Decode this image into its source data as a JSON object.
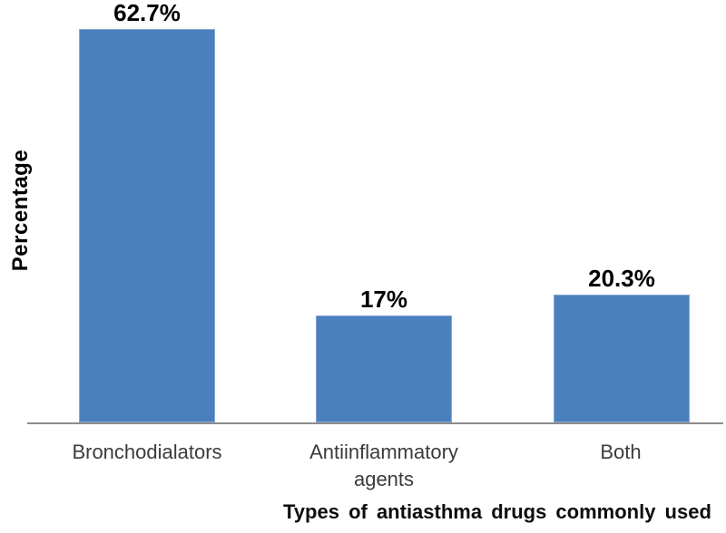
{
  "chart_data": {
    "type": "bar",
    "title": "",
    "categories": [
      "Bronchodialators",
      "Antiinflammatory agents",
      "Both"
    ],
    "values": [
      62.7,
      17,
      20.3
    ],
    "value_labels": [
      "62.7%",
      "17%",
      "20.3%"
    ],
    "xlabel": "Types of antiasthma drugs commonly used",
    "ylabel": "Percentage",
    "ylim": [
      0,
      65
    ],
    "grid": false,
    "legend": false,
    "bar_color": "#4c7fbe",
    "bar_border_color": "#86a8d3",
    "axis_line_color": "#8c8c8c",
    "value_label_color": "#000000",
    "category_label_color": "#3b3b3b",
    "background_color": "#ffffff"
  }
}
